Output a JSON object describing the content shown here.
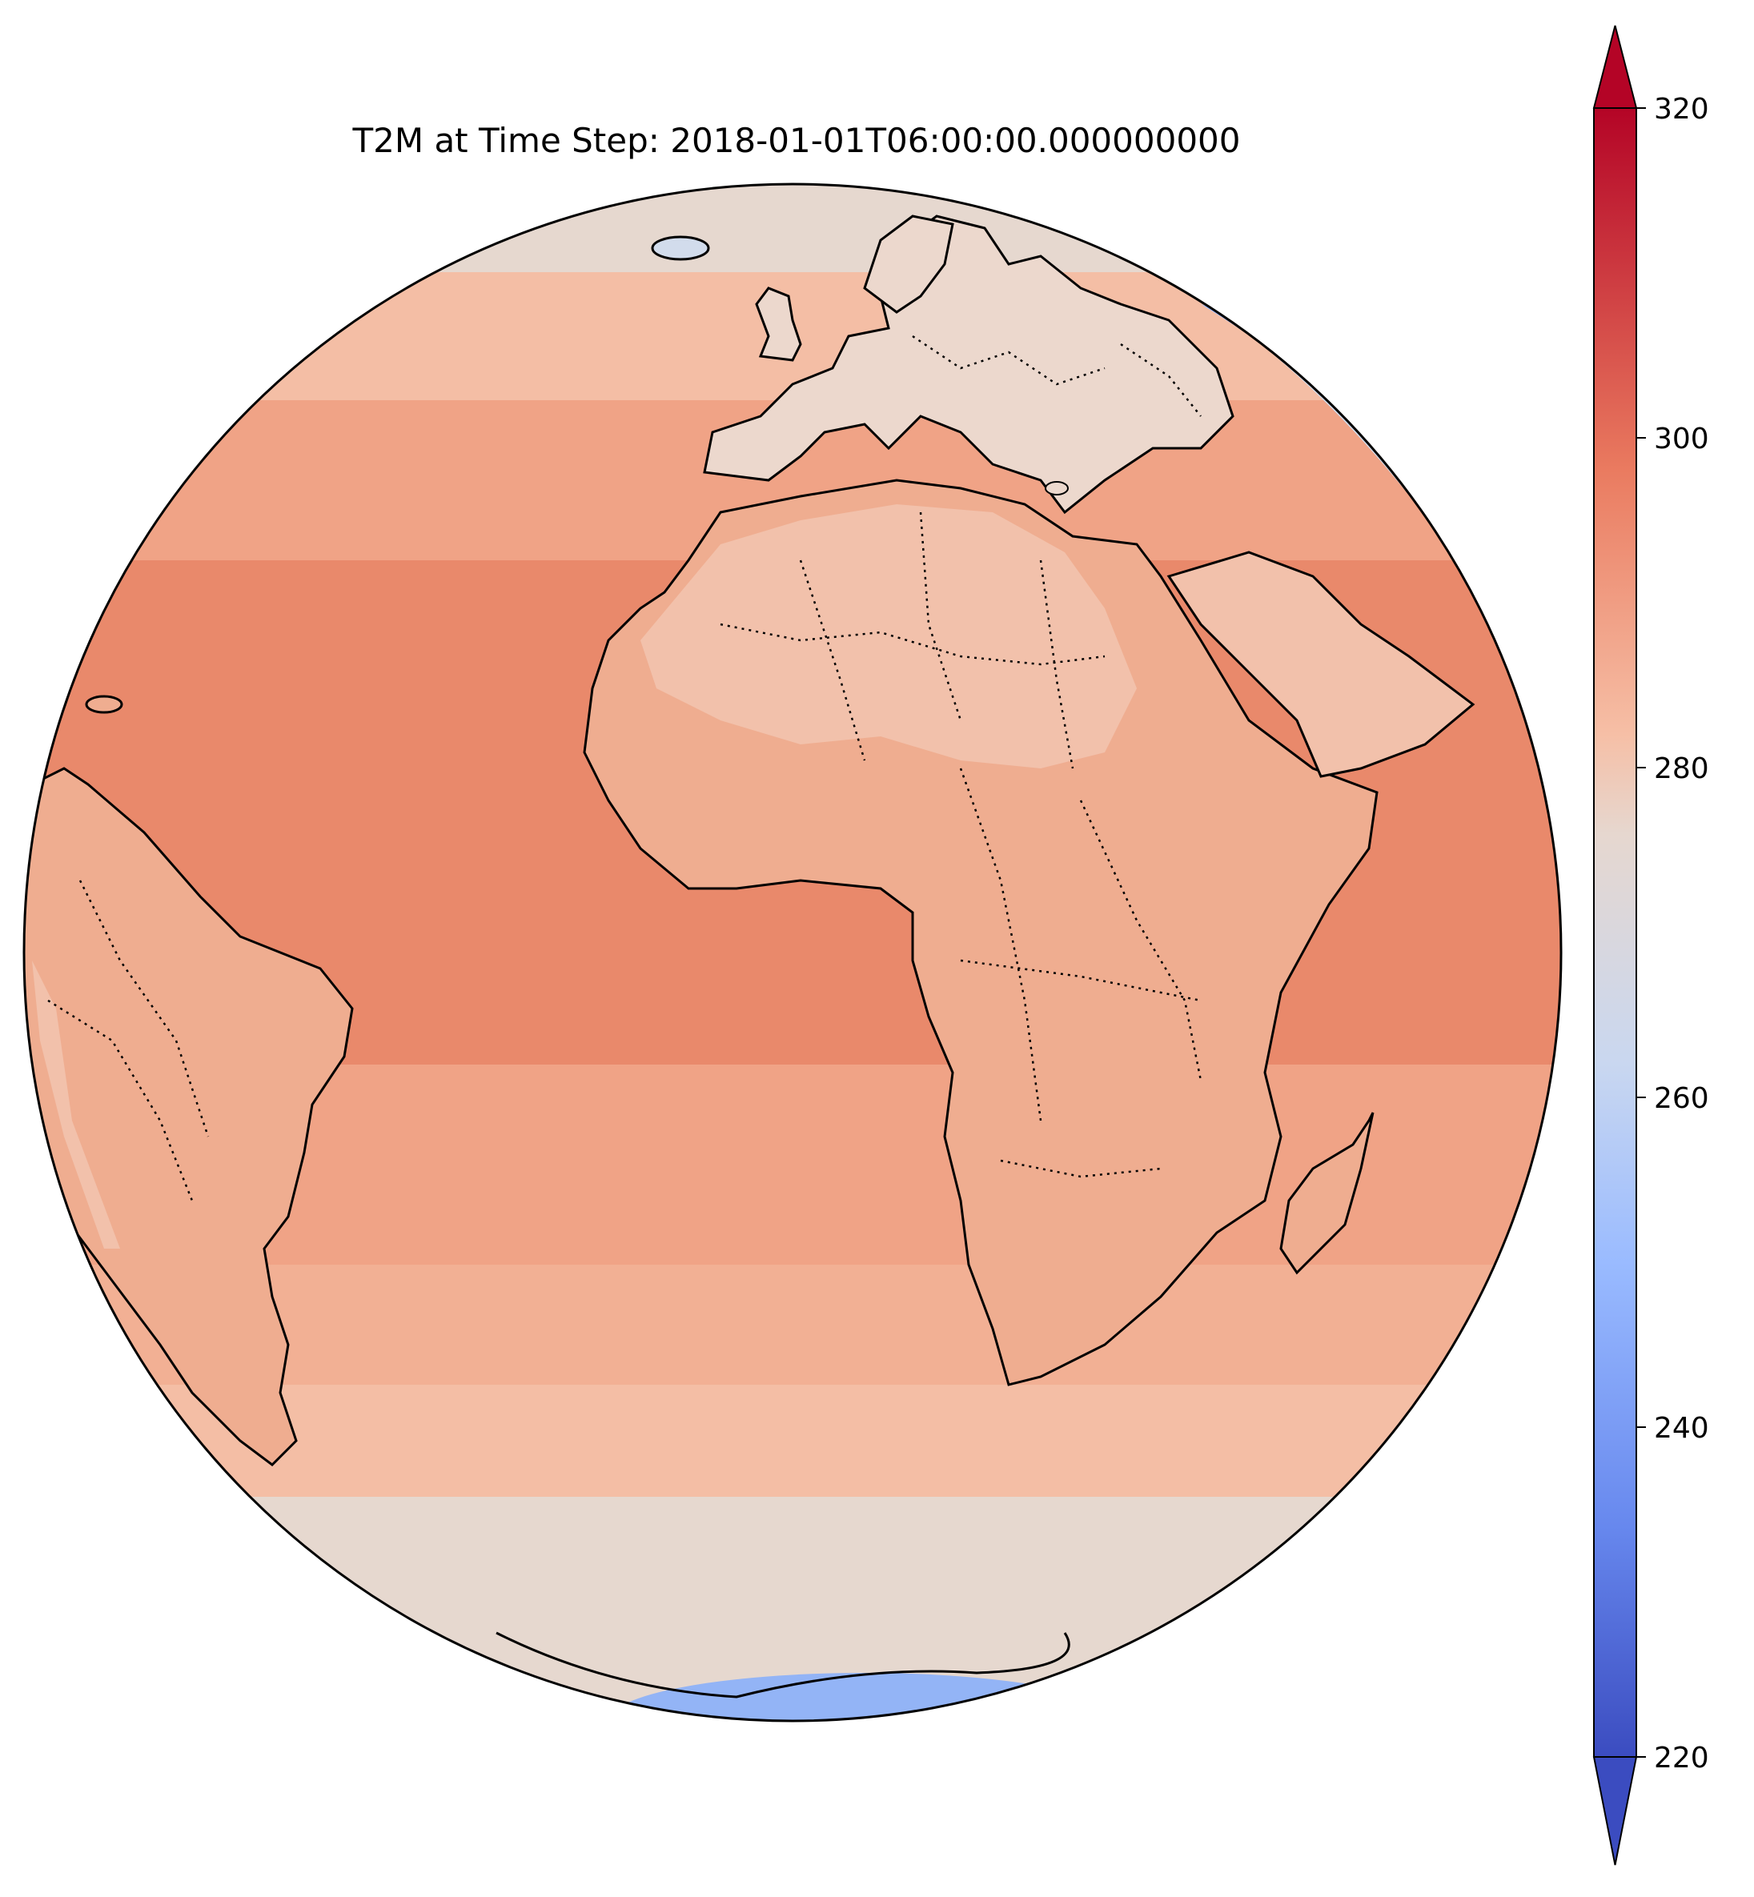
{
  "title": "T2M at Time Step: 2018-01-01T06:00:00.000000000",
  "colorbar": {
    "min": 220,
    "max": 320,
    "extend": "both",
    "ticks": [
      {
        "value": 220,
        "label": "220"
      },
      {
        "value": 240,
        "label": "240"
      },
      {
        "value": 260,
        "label": "260"
      },
      {
        "value": 280,
        "label": "280"
      },
      {
        "value": 300,
        "label": "300"
      },
      {
        "value": 320,
        "label": "320"
      }
    ],
    "colormap": "coolwarm",
    "stops": [
      "#3b4cc0",
      "#6788ee",
      "#9abbff",
      "#c9d7f0",
      "#e6d7cf",
      "#f6bfa6",
      "#ea7b60",
      "#b40426"
    ]
  },
  "map": {
    "projection": "orthographic",
    "colors": {
      "ocean_tropical": "#e9896b",
      "ocean_mid": "#f0a386",
      "ocean_subpolar": "#f4bea5",
      "ocean_cold": "#e6d8cf",
      "ice": "#d2dcec",
      "polar": "#93b4f6",
      "land_warm": "#efad90",
      "land_north_africa": "#f2c1ab",
      "land_europe": "#ecd8cd",
      "coastline": "#000000"
    }
  }
}
